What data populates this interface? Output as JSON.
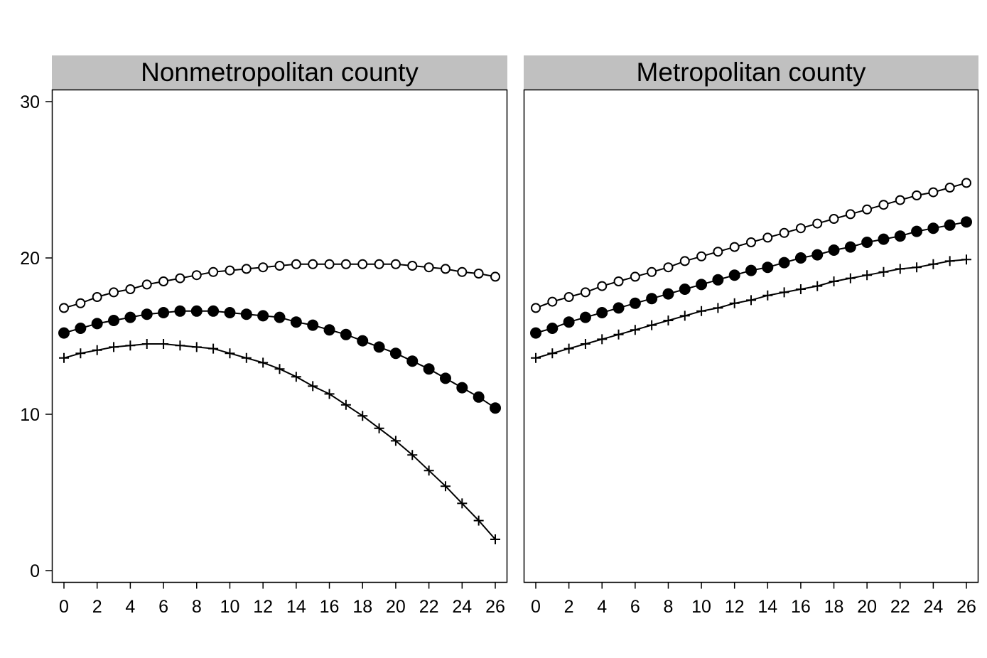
{
  "chart_data": [
    {
      "type": "line",
      "title": "Nonmetropolitan county",
      "xlabel": "",
      "ylabel": "",
      "x": [
        0,
        1,
        2,
        3,
        4,
        5,
        6,
        7,
        8,
        9,
        10,
        11,
        12,
        13,
        14,
        15,
        16,
        17,
        18,
        19,
        20,
        21,
        22,
        23,
        24,
        25,
        26
      ],
      "xticks": [
        "0",
        "2",
        "4",
        "6",
        "8",
        "10",
        "12",
        "14",
        "16",
        "18",
        "20",
        "22",
        "24",
        "26"
      ],
      "yticks": [
        "0",
        "10",
        "20",
        "30"
      ],
      "xlim": [
        0,
        26
      ],
      "ylim": [
        0,
        30
      ],
      "grid": false,
      "legend": "none",
      "series": [
        {
          "marker": "open-circle",
          "values": [
            16.8,
            17.1,
            17.5,
            17.8,
            18.0,
            18.3,
            18.5,
            18.7,
            18.9,
            19.1,
            19.2,
            19.3,
            19.4,
            19.5,
            19.6,
            19.6,
            19.6,
            19.6,
            19.6,
            19.6,
            19.6,
            19.5,
            19.4,
            19.3,
            19.1,
            19.0,
            18.8
          ]
        },
        {
          "marker": "filled-circle",
          "values": [
            15.2,
            15.5,
            15.8,
            16.0,
            16.2,
            16.4,
            16.5,
            16.6,
            16.6,
            16.6,
            16.5,
            16.4,
            16.3,
            16.2,
            15.9,
            15.7,
            15.4,
            15.1,
            14.7,
            14.3,
            13.9,
            13.4,
            12.9,
            12.3,
            11.7,
            11.1,
            10.4
          ]
        },
        {
          "marker": "plus",
          "values": [
            13.6,
            13.9,
            14.1,
            14.3,
            14.4,
            14.5,
            14.5,
            14.4,
            14.3,
            14.2,
            13.9,
            13.6,
            13.3,
            12.9,
            12.4,
            11.8,
            11.3,
            10.6,
            9.9,
            9.1,
            8.3,
            7.4,
            6.4,
            5.4,
            4.3,
            3.2,
            2.0
          ]
        }
      ]
    },
    {
      "type": "line",
      "title": "Metropolitan county",
      "xlabel": "",
      "ylabel": "",
      "x": [
        0,
        1,
        2,
        3,
        4,
        5,
        6,
        7,
        8,
        9,
        10,
        11,
        12,
        13,
        14,
        15,
        16,
        17,
        18,
        19,
        20,
        21,
        22,
        23,
        24,
        25,
        26
      ],
      "xticks": [
        "0",
        "2",
        "4",
        "6",
        "8",
        "10",
        "12",
        "14",
        "16",
        "18",
        "20",
        "22",
        "24",
        "26"
      ],
      "xlim": [
        0,
        26
      ],
      "ylim": [
        0,
        30
      ],
      "grid": false,
      "legend": "none",
      "series": [
        {
          "marker": "open-circle",
          "values": [
            16.8,
            17.2,
            17.5,
            17.8,
            18.2,
            18.5,
            18.8,
            19.1,
            19.4,
            19.8,
            20.1,
            20.4,
            20.7,
            21.0,
            21.3,
            21.6,
            21.9,
            22.2,
            22.5,
            22.8,
            23.1,
            23.4,
            23.7,
            24.0,
            24.2,
            24.5,
            24.8
          ]
        },
        {
          "marker": "filled-circle",
          "values": [
            15.2,
            15.5,
            15.9,
            16.2,
            16.5,
            16.8,
            17.1,
            17.4,
            17.7,
            18.0,
            18.3,
            18.6,
            18.9,
            19.2,
            19.4,
            19.7,
            20.0,
            20.2,
            20.5,
            20.7,
            21.0,
            21.2,
            21.4,
            21.7,
            21.9,
            22.1,
            22.3
          ]
        },
        {
          "marker": "plus",
          "values": [
            13.6,
            13.9,
            14.2,
            14.5,
            14.8,
            15.1,
            15.4,
            15.7,
            16.0,
            16.3,
            16.6,
            16.8,
            17.1,
            17.3,
            17.6,
            17.8,
            18.0,
            18.2,
            18.5,
            18.7,
            18.9,
            19.1,
            19.3,
            19.4,
            19.6,
            19.8,
            19.9
          ]
        }
      ]
    }
  ]
}
